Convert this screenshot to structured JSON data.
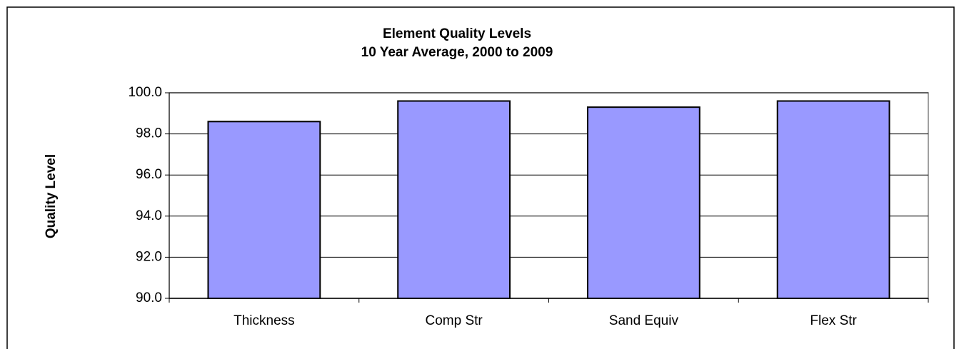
{
  "chart_data": {
    "type": "bar",
    "title": "Element Quality Levels",
    "subtitle": "10 Year Average, 2000 to 2009",
    "y_label": "Quality Level",
    "categories": [
      "Thickness",
      "Comp Str",
      "Sand Equiv",
      "Flex Str"
    ],
    "values": [
      98.6,
      99.6,
      99.3,
      99.6
    ],
    "color": "#9999ff",
    "ylim": [
      90,
      100
    ],
    "yticks": [
      {
        "value": 90,
        "label": "90.0"
      },
      {
        "value": 92,
        "label": "92.0"
      },
      {
        "value": 94,
        "label": "94.0"
      },
      {
        "value": 96,
        "label": "96.0"
      },
      {
        "value": 98,
        "label": "98.0"
      },
      {
        "value": 100,
        "label": "100.0"
      }
    ],
    "grid": true
  }
}
